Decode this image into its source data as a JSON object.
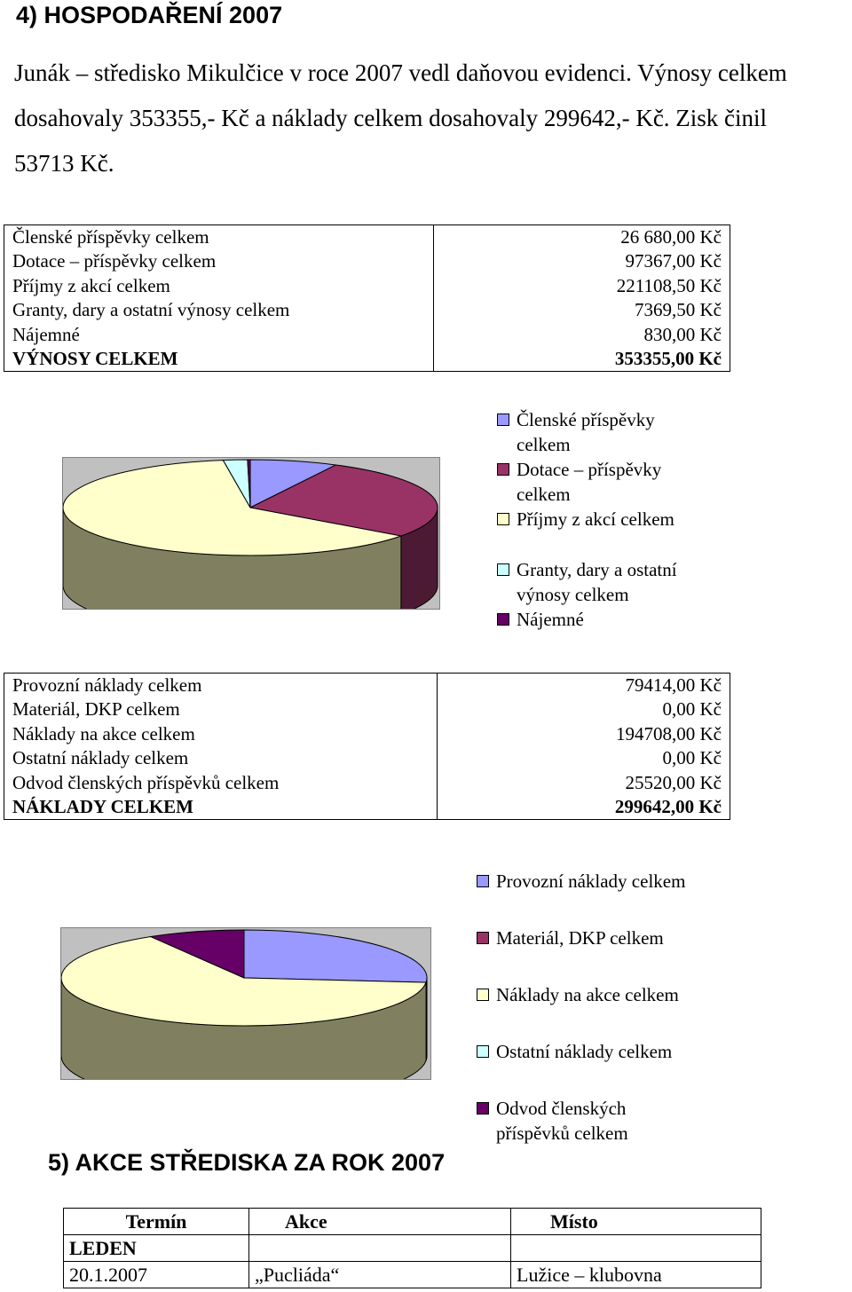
{
  "section4": {
    "title": "4) HOSPODAŘENÍ 2007",
    "paragraph_lines": [
      "Junák – středisko Mikulčice v roce 2007 vedl daňovou evidenci. Výnosy celkem",
      "dosahovaly 353355,- Kč a náklady celkem dosahovaly 299642,- Kč. Zisk činil",
      "53713 Kč."
    ]
  },
  "income_table": {
    "rows": [
      {
        "label": "Členské příspěvky celkem",
        "value": "26 680,00 Kč"
      },
      {
        "label": "Dotace – příspěvky celkem",
        "value": "97367,00 Kč"
      },
      {
        "label": "Příjmy z akcí celkem",
        "value": "221108,50 Kč"
      },
      {
        "label": "Granty, dary a ostatní výnosy celkem",
        "value": "7369,50 Kč"
      },
      {
        "label": "Nájemné",
        "value": "830,00 Kč"
      }
    ],
    "total": {
      "label": "VÝNOSY CELKEM",
      "value": "353355,00 Kč"
    }
  },
  "chart_data": [
    {
      "type": "pie",
      "title": "",
      "series": [
        {
          "values": [
            26680,
            97367,
            221108.5,
            7369.5,
            830
          ]
        }
      ],
      "legend": {
        "placement": "right",
        "entries": [
          {
            "lines": [
              "Členské příspěvky",
              "celkem"
            ],
            "color": "#9999ff"
          },
          {
            "lines": [
              "Dotace – příspěvky",
              "celkem"
            ],
            "color": "#993366"
          },
          {
            "lines": [
              "Příjmy z akcí celkem"
            ],
            "color": "#ffffcc"
          },
          {
            "lines": [
              "Granty, dary a ostatní",
              "výnosy celkem"
            ],
            "color": "#ccffff"
          },
          {
            "lines": [
              "Nájemné"
            ],
            "color": "#660066"
          }
        ]
      },
      "style": {
        "3d": true,
        "plot_background": "#c0c0c0",
        "side_color": "#808060"
      }
    },
    {
      "type": "pie",
      "title": "",
      "series": [
        {
          "values": [
            79414,
            0,
            194708,
            0,
            25520
          ]
        }
      ],
      "legend": {
        "placement": "right",
        "entries": [
          {
            "lines": [
              "Provozní náklady celkem"
            ],
            "color": "#9999ff"
          },
          {
            "lines": [
              "Materiál, DKP celkem"
            ],
            "color": "#993366"
          },
          {
            "lines": [
              "Náklady na akce celkem"
            ],
            "color": "#ffffcc"
          },
          {
            "lines": [
              "Ostatní náklady celkem"
            ],
            "color": "#ccffff"
          },
          {
            "lines": [
              "Odvod členských",
              "příspěvků celkem"
            ],
            "color": "#660066"
          }
        ]
      },
      "style": {
        "3d": true,
        "plot_background": "#c0c0c0",
        "side_color": "#808060"
      }
    }
  ],
  "expense_table": {
    "rows": [
      {
        "label": "Provozní náklady celkem",
        "value": "79414,00 Kč"
      },
      {
        "label": "Materiál, DKP celkem",
        "value": "0,00 Kč"
      },
      {
        "label": "Náklady na akce celkem",
        "value": "194708,00 Kč"
      },
      {
        "label": "Ostatní náklady celkem",
        "value": "0,00 Kč"
      },
      {
        "label": "Odvod členských příspěvků celkem",
        "value": "25520,00 Kč"
      }
    ],
    "total": {
      "label": "NÁKLADY CELKEM",
      "value": "299642,00 Kč"
    }
  },
  "section5": {
    "title": "5) AKCE STŘEDISKA ZA ROK 2007",
    "table": {
      "headers": [
        "Termín",
        "Akce",
        "Místo"
      ],
      "rows": [
        [
          "LEDEN",
          "",
          ""
        ],
        [
          "20.1.2007",
          "„Pucliáda“",
          "Lužice – klubovna"
        ]
      ]
    }
  }
}
